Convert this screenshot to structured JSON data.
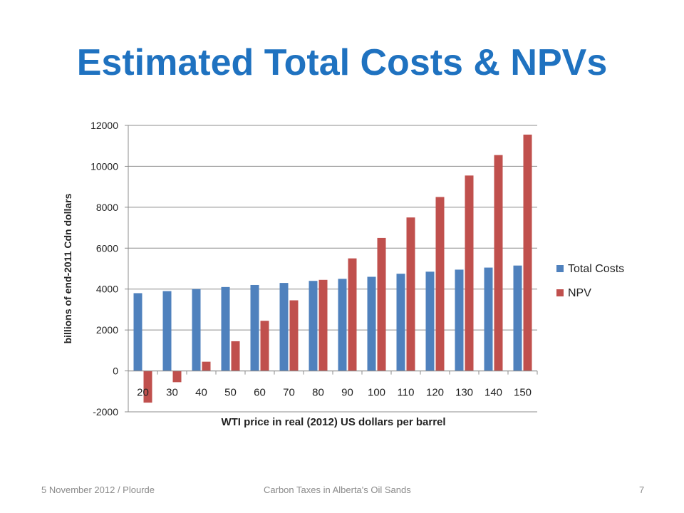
{
  "slide": {
    "title": "Estimated Total Costs & NPVs"
  },
  "footer": {
    "left": "5 November 2012 / Plourde",
    "center": "Carbon Taxes in Alberta's Oil Sands",
    "page_number": "7"
  },
  "chart_data": {
    "type": "bar",
    "xlabel": "WTI price in real (2012) US dollars per barrel",
    "ylabel": "billions of end-2011 Cdn dollars",
    "ylim": [
      -2000,
      12000
    ],
    "yticks": [
      -2000,
      0,
      2000,
      4000,
      6000,
      8000,
      10000,
      12000
    ],
    "categories": [
      "20",
      "30",
      "40",
      "50",
      "60",
      "70",
      "80",
      "90",
      "100",
      "110",
      "120",
      "130",
      "140",
      "150"
    ],
    "series": [
      {
        "name": "Total Costs",
        "color": "#4f81bd",
        "values": [
          3800,
          3900,
          4000,
          4100,
          4200,
          4300,
          4400,
          4500,
          4600,
          4750,
          4850,
          4950,
          5050,
          5150
        ]
      },
      {
        "name": "NPV",
        "color": "#c0504d",
        "values": [
          -1550,
          -550,
          450,
          1450,
          2450,
          3450,
          4450,
          5500,
          6500,
          7500,
          8500,
          9550,
          10550,
          11550
        ]
      }
    ],
    "grid": true,
    "legend_position": "right"
  }
}
